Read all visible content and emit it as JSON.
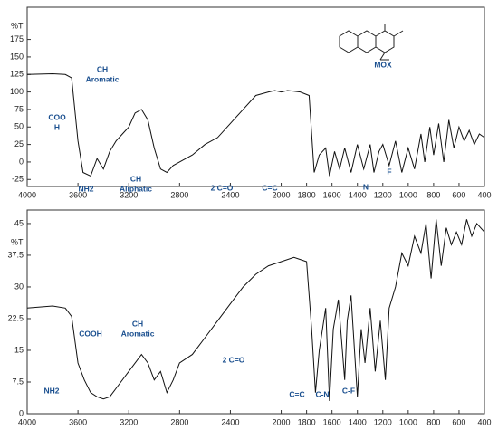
{
  "chart_data": [
    {
      "type": "line",
      "ylabel": "%T",
      "color": "#111111",
      "x": [
        4000,
        3800,
        3700,
        3650,
        3600,
        3560,
        3500,
        3450,
        3400,
        3350,
        3300,
        3250,
        3200,
        3150,
        3100,
        3050,
        3000,
        2950,
        2900,
        2850,
        2800,
        2700,
        2600,
        2500,
        2400,
        2300,
        2200,
        2100,
        2050,
        2000,
        1950,
        1900,
        1850,
        1780,
        1740,
        1700,
        1650,
        1620,
        1580,
        1540,
        1500,
        1450,
        1400,
        1350,
        1300,
        1270,
        1230,
        1200,
        1150,
        1100,
        1050,
        1000,
        950,
        900,
        870,
        830,
        800,
        760,
        720,
        680,
        640,
        600,
        560,
        520,
        480,
        440,
        400
      ],
      "values": [
        125,
        126,
        125,
        120,
        30,
        -15,
        -20,
        5,
        -10,
        15,
        30,
        40,
        50,
        70,
        75,
        60,
        20,
        -10,
        -15,
        -5,
        0,
        10,
        25,
        35,
        55,
        75,
        95,
        100,
        102,
        100,
        102,
        101,
        100,
        95,
        -15,
        10,
        20,
        -20,
        15,
        -10,
        20,
        -15,
        25,
        -10,
        25,
        -15,
        15,
        25,
        -5,
        30,
        -15,
        20,
        -10,
        40,
        0,
        50,
        10,
        55,
        0,
        60,
        20,
        50,
        30,
        45,
        25,
        40,
        35
      ],
      "xlim": [
        4000,
        400
      ],
      "xticks": [
        4000,
        3600,
        3200,
        2800,
        2400,
        2000,
        1800,
        1600,
        1400,
        1200,
        1000,
        800,
        600,
        400
      ],
      "ylim": [
        -35,
        221
      ],
      "yticks": [
        -25,
        0,
        25,
        50,
        75,
        100,
        125,
        150,
        175
      ],
      "annotations": [
        "CH",
        "Aromatic",
        "COO",
        "H",
        "NH2",
        "CH",
        "Aliphatic",
        "2 C=O",
        "C=C",
        "N",
        "F",
        "MOX"
      ]
    },
    {
      "type": "line",
      "ylabel": "%T",
      "color": "#111111",
      "x": [
        4000,
        3800,
        3700,
        3650,
        3600,
        3550,
        3500,
        3450,
        3400,
        3350,
        3300,
        3200,
        3100,
        3050,
        3000,
        2950,
        2900,
        2850,
        2800,
        2700,
        2600,
        2500,
        2400,
        2300,
        2200,
        2100,
        2000,
        1900,
        1850,
        1800,
        1760,
        1730,
        1700,
        1650,
        1620,
        1590,
        1550,
        1500,
        1480,
        1450,
        1400,
        1370,
        1340,
        1300,
        1260,
        1220,
        1180,
        1150,
        1100,
        1050,
        1000,
        950,
        900,
        860,
        820,
        780,
        740,
        700,
        660,
        620,
        580,
        540,
        500,
        460,
        400
      ],
      "values": [
        25,
        25.5,
        25,
        23,
        12,
        8,
        5,
        4,
        3.5,
        4,
        6,
        10,
        14,
        12,
        8,
        10,
        5,
        8,
        12,
        14,
        18,
        22,
        26,
        30,
        33,
        35,
        36,
        37,
        36.5,
        36,
        20,
        5,
        15,
        25,
        3,
        20,
        27,
        8,
        22,
        28,
        4,
        20,
        12,
        25,
        10,
        22,
        8,
        25,
        30,
        38,
        35,
        42,
        38,
        45,
        32,
        46,
        35,
        44,
        40,
        43,
        40,
        46,
        42,
        45,
        43
      ],
      "xlim": [
        4000,
        400
      ],
      "xticks": [
        4000,
        3600,
        3200,
        2800,
        2400,
        2000,
        1800,
        1600,
        1400,
        1200,
        1000,
        800,
        600,
        400
      ],
      "ylim": [
        0,
        48.2
      ],
      "yticks": [
        0,
        7.5,
        15,
        22.5,
        30,
        37.5,
        45
      ],
      "annotations": [
        "COOH",
        "CH",
        "Aromatic",
        "NH2",
        "2 C=O",
        "C=C",
        "C-N",
        "C-F"
      ]
    }
  ]
}
